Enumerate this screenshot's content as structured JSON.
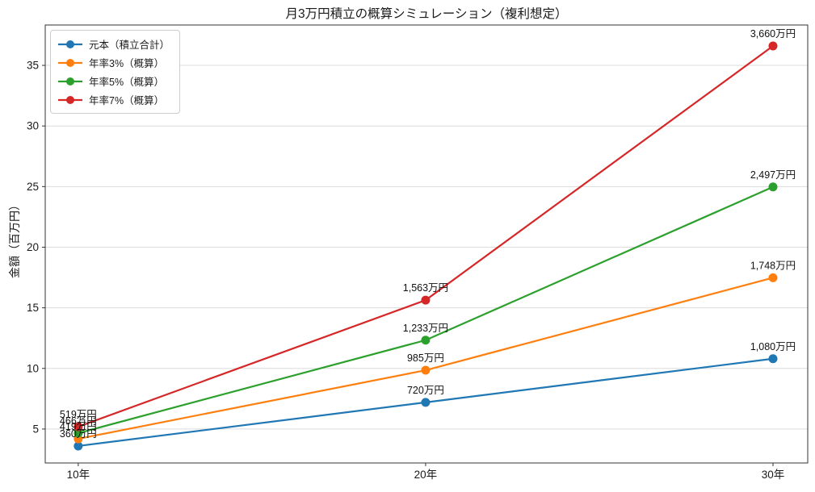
{
  "title": "月3万円積立の概算シミュレーション（複利想定）",
  "colors": {
    "background": "#ffffff",
    "grid": "#dcdcdc",
    "spine": "#333333",
    "text": "#1a1a1a"
  },
  "chart_data": {
    "type": "line",
    "title": "月3万円積立の概算シミュレーション（複利想定）",
    "xlabel": "",
    "ylabel": "金額（百万円）",
    "x_values": [
      10,
      20,
      30
    ],
    "x_tick_labels": [
      "10年",
      "20年",
      "30年"
    ],
    "y_ticks": [
      5,
      10,
      15,
      20,
      25,
      30,
      35
    ],
    "xlim": [
      9.05,
      31
    ],
    "ylim": [
      2.2,
      38.33
    ],
    "grid": "horizontal-only",
    "legend_position": "upper left",
    "series": [
      {
        "name": "元本（積立合計）",
        "color": "#1f77b4",
        "values": [
          3.6,
          7.2,
          10.8
        ],
        "point_labels": [
          "360万円",
          "720万円",
          "1,080万円"
        ]
      },
      {
        "name": "年率3%（概算）",
        "color": "#ff7f0e",
        "values": [
          4.19,
          9.85,
          17.48
        ],
        "point_labels": [
          "419万円",
          "985万円",
          "1,748万円"
        ]
      },
      {
        "name": "年率5%（概算）",
        "color": "#2ca02c",
        "values": [
          4.66,
          12.33,
          24.97
        ],
        "point_labels": [
          "466万円",
          "1,233万円",
          "2,497万円"
        ]
      },
      {
        "name": "年率7%（概算）",
        "color": "#d62728",
        "values": [
          5.19,
          15.63,
          36.6
        ],
        "point_labels": [
          "519万円",
          "1,563万円",
          "3,660万円"
        ]
      }
    ]
  }
}
